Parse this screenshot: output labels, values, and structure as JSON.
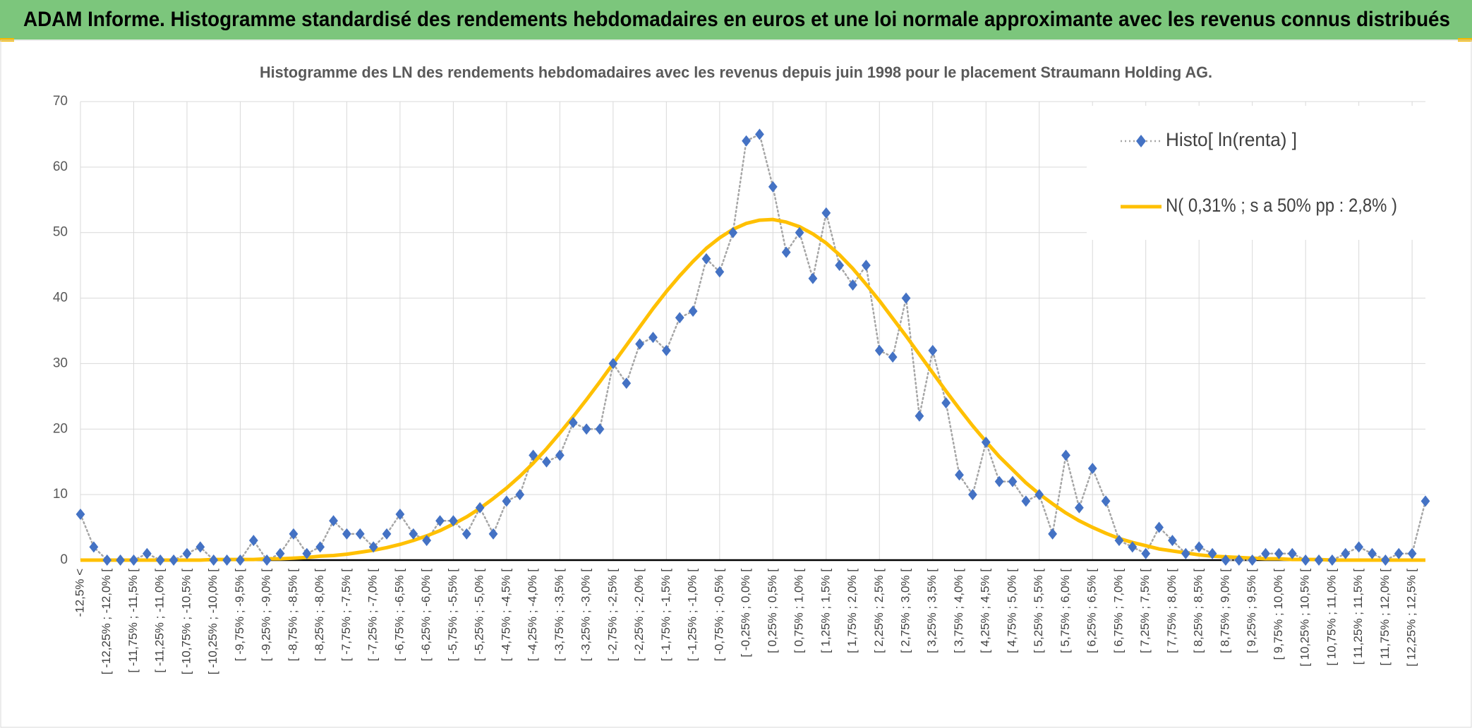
{
  "header": {
    "title": "ADAM Informe. Histogramme standardisé des rendements hebdomadaires en euros et une loi normale approximante avec les revenus connus distribués"
  },
  "chart_data": {
    "type": "line",
    "title": "Histogramme des LN des rendements hebdomadaires avec les revenus depuis juin 1998 pour le placement Straumann Holding AG.",
    "categories": [
      "-12,5% <",
      null,
      "[ -12,25% ; -12,0% [",
      null,
      "[ -11,75% ; -11,5% [",
      null,
      "[ -11,25% ; -11,0% [",
      null,
      "[ -10,75% ; -10,5% [",
      null,
      "[ -10,25% ; -10,0% [",
      null,
      "[ -9,75% ; -9,5% [",
      null,
      "[ -9,25% ; -9,0% [",
      null,
      "[ -8,75% ; -8,5% [",
      null,
      "[ -8,25% ; -8,0% [",
      null,
      "[ -7,75% ; -7,5% [",
      null,
      "[ -7,25% ; -7,0% [",
      null,
      "[ -6,75% ; -6,5% [",
      null,
      "[ -6,25% ; -6,0% [",
      null,
      "[ -5,75% ; -5,5% [",
      null,
      "[ -5,25% ; -5,0% [",
      null,
      "[ -4,75% ; -4,5% [",
      null,
      "[ -4,25% ; -4,0% [",
      null,
      "[ -3,75% ; -3,5% [",
      null,
      "[ -3,25% ; -3,0% [",
      null,
      "[ -2,75% ; -2,5% [",
      null,
      "[ -2,25% ; -2,0% [",
      null,
      "[ -1,75% ; -1,5% [",
      null,
      "[ -1,25% ; -1,0% [",
      null,
      "[ -0,75% ; -0,5% [",
      null,
      "[ -0,25% ; 0,0% [",
      null,
      "[ 0,25% ; 0,5% [",
      null,
      "[ 0,75% ; 1,0% [",
      null,
      "[ 1,25% ; 1,5% [",
      null,
      "[ 1,75% ; 2,0% [",
      null,
      "[ 2,25% ; 2,5% [",
      null,
      "[ 2,75% ; 3,0% [",
      null,
      "[ 3,25% ; 3,5% [",
      null,
      "[ 3,75% ; 4,0% [",
      null,
      "[ 4,25% ; 4,5% [",
      null,
      "[ 4,75% ; 5,0% [",
      null,
      "[ 5,25% ; 5,5% [",
      null,
      "[ 5,75% ; 6,0% [",
      null,
      "[ 6,25% ; 6,5% [",
      null,
      "[ 6,75% ; 7,0% [",
      null,
      "[ 7,25% ; 7,5% [",
      null,
      "[ 7,75% ; 8,0% [",
      null,
      "[ 8,25% ; 8,5% [",
      null,
      "[ 8,75% ; 9,0% [",
      null,
      "[ 9,25% ; 9,5% [",
      null,
      "[ 9,75% ; 10,0% [",
      null,
      "[ 10,25% ; 10,5% [",
      null,
      "[ 10,75% ; 11,0% [",
      null,
      "[ 11,25% ; 11,5% [",
      null,
      "[ 11,75% ; 12,0% [",
      null,
      "[ 12,25% ; 12,5% [",
      null
    ],
    "series": [
      {
        "name": "Histo[ ln(renta) ]",
        "color": "#4472c4",
        "line_color": "#a6a6a6",
        "values": [
          7,
          2,
          0,
          0,
          0,
          1,
          0,
          0,
          1,
          2,
          0,
          0,
          0,
          3,
          0,
          1,
          4,
          1,
          2,
          6,
          4,
          4,
          2,
          4,
          7,
          4,
          3,
          6,
          6,
          4,
          8,
          4,
          9,
          10,
          16,
          15,
          16,
          21,
          20,
          20,
          30,
          27,
          33,
          34,
          32,
          37,
          38,
          46,
          44,
          50,
          64,
          65,
          57,
          47,
          50,
          43,
          53,
          45,
          42,
          45,
          32,
          31,
          40,
          22,
          32,
          24,
          13,
          10,
          18,
          12,
          12,
          9,
          10,
          4,
          16,
          8,
          14,
          9,
          3,
          2,
          1,
          5,
          3,
          1,
          2,
          1,
          0,
          0,
          0,
          1,
          1,
          1,
          0,
          0,
          0,
          1,
          2,
          1,
          0,
          1,
          1,
          9
        ]
      },
      {
        "name": "N( 0,31% ; s a 50% pp : 2,8% )",
        "color": "#ffc000",
        "values": [
          0,
          0,
          0,
          0,
          0,
          0,
          0,
          0,
          0,
          0,
          0.1,
          0.1,
          0.1,
          0.1,
          0.2,
          0.2,
          0.3,
          0.4,
          0.6,
          0.7,
          0.9,
          1.2,
          1.5,
          1.9,
          2.4,
          3.0,
          3.7,
          4.5,
          5.5,
          6.6,
          7.9,
          9.4,
          11.0,
          12.8,
          14.8,
          17.0,
          19.4,
          21.9,
          24.5,
          27.2,
          30.0,
          32.8,
          35.6,
          38.4,
          41.0,
          43.4,
          45.6,
          47.6,
          49.2,
          50.5,
          51.4,
          51.9,
          52.0,
          51.6,
          50.9,
          49.8,
          48.4,
          46.6,
          44.5,
          42.1,
          39.6,
          36.9,
          34.2,
          31.4,
          28.6,
          25.8,
          23.1,
          20.5,
          18.1,
          15.8,
          13.8,
          11.8,
          10.1,
          8.6,
          7.2,
          6.0,
          5.0,
          4.1,
          3.3,
          2.7,
          2.2,
          1.7,
          1.4,
          1.1,
          0.8,
          0.6,
          0.5,
          0.4,
          0.3,
          0.2,
          0.2,
          0.1,
          0.1,
          0.1,
          0,
          0,
          0,
          0,
          0,
          0,
          0,
          0
        ]
      }
    ],
    "ylim": [
      0,
      70
    ],
    "yticks": [
      0,
      10,
      20,
      30,
      40,
      50,
      60,
      70
    ],
    "grid": true,
    "legend": "top-right"
  }
}
